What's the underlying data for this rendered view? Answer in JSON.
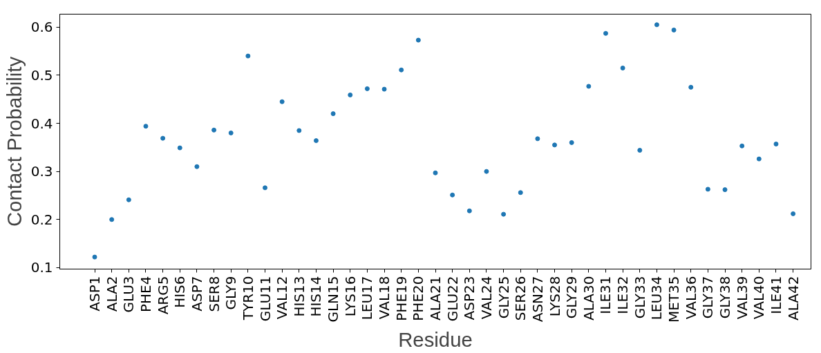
{
  "chart_data": {
    "type": "scatter",
    "xlabel": "Residue",
    "ylabel": "Contact Probability",
    "categories": [
      "ASP1",
      "ALA2",
      "GLU3",
      "PHE4",
      "ARG5",
      "HIS6",
      "ASP7",
      "SER8",
      "GLY9",
      "TYR10",
      "GLU11",
      "VAL12",
      "HIS13",
      "HIS14",
      "GLN15",
      "LYS16",
      "LEU17",
      "VAL18",
      "PHE19",
      "PHE20",
      "ALA21",
      "GLU22",
      "ASP23",
      "VAL24",
      "GLY25",
      "SER26",
      "ASN27",
      "LYS28",
      "GLY29",
      "ALA30",
      "ILE31",
      "ILE32",
      "GLY33",
      "LEU34",
      "MET35",
      "VAL36",
      "GLY37",
      "GLY38",
      "VAL39",
      "VAL40",
      "ILE41",
      "ALA42"
    ],
    "values": [
      0.122,
      0.2,
      0.241,
      0.394,
      0.369,
      0.349,
      0.31,
      0.386,
      0.38,
      0.54,
      0.266,
      0.445,
      0.385,
      0.364,
      0.42,
      0.459,
      0.472,
      0.471,
      0.511,
      0.573,
      0.297,
      0.251,
      0.218,
      0.3,
      0.211,
      0.256,
      0.368,
      0.355,
      0.36,
      0.477,
      0.587,
      0.515,
      0.344,
      0.605,
      0.594,
      0.475,
      0.263,
      0.262,
      0.353,
      0.326,
      0.357,
      0.212
    ],
    "color": "#1f77b4",
    "marker": "circle",
    "grid": false,
    "ylim": [
      0.097,
      0.627
    ],
    "yticks": [
      0.1,
      0.2,
      0.3,
      0.4,
      0.5,
      0.6
    ]
  }
}
